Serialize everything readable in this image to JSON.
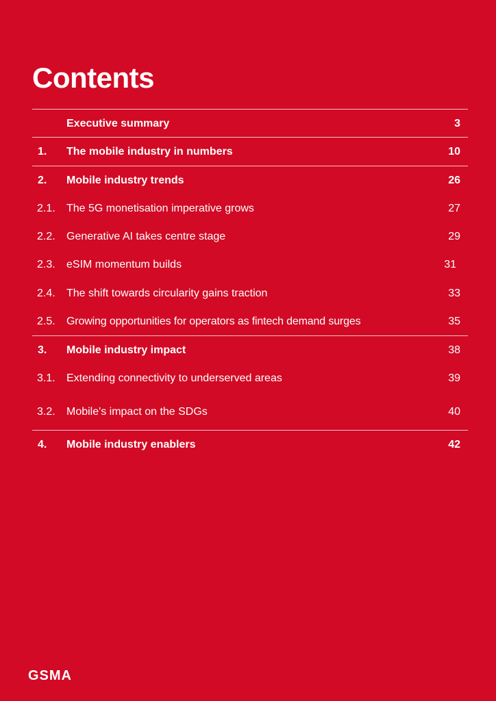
{
  "title": "Contents",
  "entries": [
    {
      "num": "",
      "label": "Executive summary",
      "page": "3",
      "bold": true
    },
    {
      "num": "1.",
      "label": "The mobile industry in numbers",
      "page": "10",
      "bold": true
    },
    {
      "num": "2.",
      "label": "Mobile industry trends",
      "page": "26",
      "bold": true
    },
    {
      "num": "2.1.",
      "label": "The 5G monetisation imperative grows",
      "page": "27",
      "bold": false
    },
    {
      "num": "2.2.",
      "label": "Generative AI takes centre stage",
      "page": "29",
      "bold": false
    },
    {
      "num": "2.3.",
      "label": "eSIM momentum builds",
      "page": "31",
      "bold": false
    },
    {
      "num": "2.4.",
      "label": "The shift towards circularity gains traction",
      "page": "33",
      "bold": false
    },
    {
      "num": "2.5.",
      "label": "Growing opportunities for operators as fintech demand surges",
      "page": "35",
      "bold": false
    },
    {
      "num": "3.",
      "label": "Mobile industry impact",
      "page": "38",
      "bold": true
    },
    {
      "num": "3.1.",
      "label": "Extending connectivity to underserved areas",
      "page": "39",
      "bold": false
    },
    {
      "num": "3.2.",
      "label": "Mobile's impact on the SDGs",
      "page": "40",
      "bold": false
    },
    {
      "num": "4.",
      "label": "Mobile industry enablers",
      "page": "42",
      "bold": true
    }
  ],
  "logo": "GSMA",
  "colors": {
    "background": "#D20A25",
    "text": "#FFFFFF"
  }
}
